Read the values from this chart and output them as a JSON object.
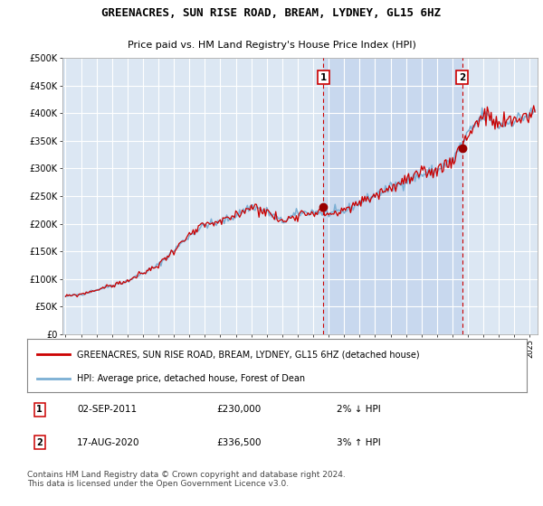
{
  "title": "GREENACRES, SUN RISE ROAD, BREAM, LYDNEY, GL15 6HZ",
  "subtitle": "Price paid vs. HM Land Registry's House Price Index (HPI)",
  "ylabel_ticks": [
    "£0",
    "£50K",
    "£100K",
    "£150K",
    "£200K",
    "£250K",
    "£300K",
    "£350K",
    "£400K",
    "£450K",
    "£500K"
  ],
  "ytick_values": [
    0,
    50000,
    100000,
    150000,
    200000,
    250000,
    300000,
    350000,
    400000,
    450000,
    500000
  ],
  "ylim": [
    0,
    500000
  ],
  "bg_color": "#dce7f3",
  "highlight_color": "#c8d8ee",
  "grid_color": "#ffffff",
  "hpi_color": "#7bafd4",
  "price_color": "#cc0000",
  "dot_color": "#990000",
  "marker1_x": 2011.67,
  "marker1_y": 230000,
  "marker1_label": "1",
  "marker2_x": 2020.63,
  "marker2_y": 336500,
  "marker2_label": "2",
  "sale1_date": "02-SEP-2011",
  "sale1_price": "£230,000",
  "sale1_info": "2% ↓ HPI",
  "sale2_date": "17-AUG-2020",
  "sale2_price": "£336,500",
  "sale2_info": "3% ↑ HPI",
  "legend_line1": "GREENACRES, SUN RISE ROAD, BREAM, LYDNEY, GL15 6HZ (detached house)",
  "legend_line2": "HPI: Average price, detached house, Forest of Dean",
  "footer": "Contains HM Land Registry data © Crown copyright and database right 2024.\nThis data is licensed under the Open Government Licence v3.0.",
  "xmin": 1994.8,
  "xmax": 2025.5,
  "base_prices": {
    "1995": 68000,
    "1996": 72000,
    "1997": 80000,
    "1998": 88000,
    "1999": 96000,
    "2000": 110000,
    "2001": 125000,
    "2002": 152000,
    "2003": 178000,
    "2004": 198000,
    "2005": 202000,
    "2006": 215000,
    "2007": 232000,
    "2008": 222000,
    "2009": 203000,
    "2010": 218000,
    "2011": 222000,
    "2012": 218000,
    "2013": 222000,
    "2014": 238000,
    "2015": 252000,
    "2016": 265000,
    "2017": 278000,
    "2018": 288000,
    "2019": 298000,
    "2020": 315000,
    "2021": 362000,
    "2022": 398000,
    "2023": 378000,
    "2024": 388000,
    "2025": 398000
  }
}
